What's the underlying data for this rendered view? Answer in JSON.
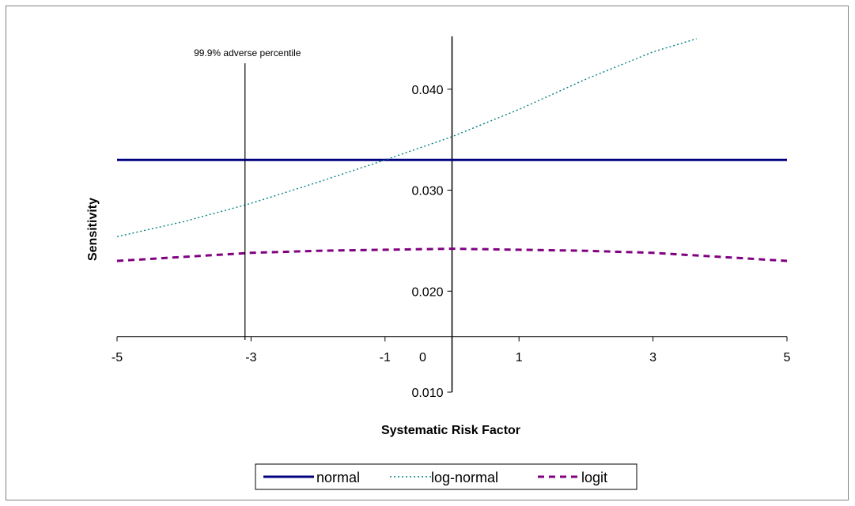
{
  "chart_data": {
    "type": "line",
    "title": "",
    "xlabel": "Systematic Risk Factor",
    "ylabel": "Sensitivity",
    "xlim": [
      -5,
      5
    ],
    "ylim": [
      0.01,
      0.045
    ],
    "x_ticks": [
      -5,
      -3,
      -1,
      1,
      3,
      5
    ],
    "x_tick_labels": [
      "-5",
      "-3",
      "-1",
      "1",
      "3",
      "5"
    ],
    "x_zero_label": "0",
    "y_ticks": [
      0.01,
      0.02,
      0.03,
      0.04
    ],
    "y_tick_labels": [
      "0.010",
      "0.020",
      "0.030",
      "0.040"
    ],
    "x_axis_crosses_y_at": 0.0155,
    "y_axis_crosses_x_at": 0,
    "grid": false,
    "legend_position": "bottom",
    "annotation": {
      "text": "99.9% adverse percentile",
      "x": -3.09
    },
    "series": [
      {
        "name": "normal",
        "color": "#000080",
        "style": "solid",
        "x": [
          -5,
          5
        ],
        "y": [
          0.033,
          0.033
        ]
      },
      {
        "name": "log-normal",
        "color": "#008080",
        "style": "dotted",
        "x": [
          -5,
          -4,
          -3,
          -2,
          -1,
          0,
          1,
          2,
          3,
          3.65
        ],
        "y": [
          0.0254,
          0.0269,
          0.0287,
          0.0308,
          0.033,
          0.0353,
          0.038,
          0.041,
          0.0437,
          0.045
        ]
      },
      {
        "name": "logit",
        "color": "#800080",
        "style": "dashed",
        "x": [
          -5,
          -4,
          -3,
          -2,
          -1,
          0,
          1,
          2,
          3,
          4,
          5
        ],
        "y": [
          0.023,
          0.0234,
          0.0238,
          0.024,
          0.0241,
          0.0242,
          0.0241,
          0.024,
          0.0238,
          0.0234,
          0.023
        ]
      }
    ]
  }
}
